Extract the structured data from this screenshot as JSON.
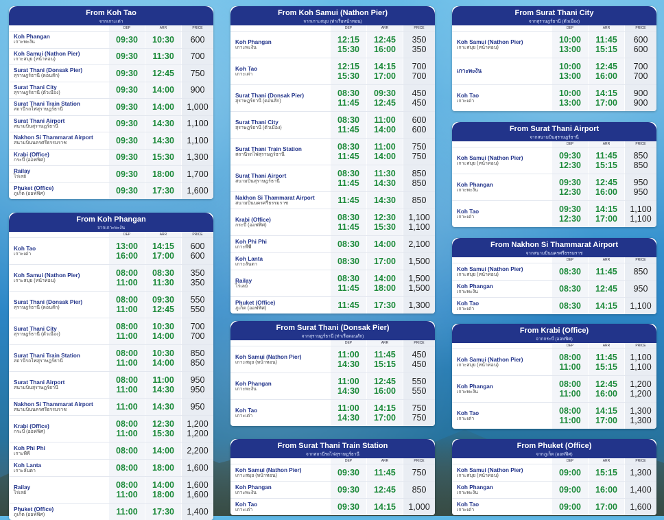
{
  "header_labels": {
    "dep": "DEP",
    "arr": "ARR",
    "price": "PRICE"
  },
  "panels": [
    {
      "title": "From Koh Tao",
      "sub": "จากเกาะเต่า",
      "rows": [
        {
          "en": "Koh Phangan",
          "th": "เกาะพะงัน",
          "dep": [
            "09:30"
          ],
          "arr": [
            "10:30"
          ],
          "price": [
            "600"
          ]
        },
        {
          "en": "Koh Samui (Nathon Pier)",
          "th": "เกาะสมุย (หน้าทอน)",
          "dep": [
            "09:30"
          ],
          "arr": [
            "11:30"
          ],
          "price": [
            "700"
          ]
        },
        {
          "en": "Surat Thani (Donsak Pier)",
          "th": "สุราษฎร์ธานี (ดอนสัก)",
          "dep": [
            "09:30"
          ],
          "arr": [
            "12:45"
          ],
          "price": [
            "750"
          ]
        },
        {
          "en": "Surat Thani City",
          "th": "สุราษฎร์ธานี (ตัวเมือง)",
          "dep": [
            "09:30"
          ],
          "arr": [
            "14:00"
          ],
          "price": [
            "900"
          ]
        },
        {
          "en": "Surat Thani Train Station",
          "th": "สถานีรถไฟสุราษฎร์ธานี",
          "dep": [
            "09:30"
          ],
          "arr": [
            "14:00"
          ],
          "price": [
            "1,000"
          ]
        },
        {
          "en": "Surat Thani Airport",
          "th": "สนามบินสุราษฎร์ธานี",
          "dep": [
            "09:30"
          ],
          "arr": [
            "14:30"
          ],
          "price": [
            "1,100"
          ]
        },
        {
          "en": "Nakhon Si Thammarat Airport",
          "th": "สนามบินนครศรีธรรมราช",
          "dep": [
            "09:30"
          ],
          "arr": [
            "14:30"
          ],
          "price": [
            "1,100"
          ]
        },
        {
          "en": "Krabi (Office)",
          "th": "กระบี่ (ออฟฟิศ)",
          "dep": [
            "09:30"
          ],
          "arr": [
            "15:30"
          ],
          "price": [
            "1,300"
          ]
        },
        {
          "en": "Railay",
          "th": "ไร่เลย์",
          "dep": [
            "09:30"
          ],
          "arr": [
            "18:00"
          ],
          "price": [
            "1,700"
          ]
        },
        {
          "en": "Phuket (Office)",
          "th": "ภูเก็ต (ออฟฟิศ)",
          "dep": [
            "09:30"
          ],
          "arr": [
            "17:30"
          ],
          "price": [
            "1,600"
          ]
        }
      ]
    },
    {
      "title": "From Koh Phangan",
      "sub": "จากเกาะพะงัน",
      "rows": [
        {
          "en": "Koh Tao",
          "th": "เกาะเต่า",
          "dep": [
            "13:00",
            "16:00"
          ],
          "arr": [
            "14:15",
            "17:00"
          ],
          "price": [
            "600",
            "600"
          ]
        },
        {
          "en": "Koh Samui (Nathon Pier)",
          "th": "เกาะสมุย (หน้าทอน)",
          "dep": [
            "08:00",
            "11:00"
          ],
          "arr": [
            "08:30",
            "11:30"
          ],
          "price": [
            "350",
            "350"
          ]
        },
        {
          "en": "Surat Thani (Donsak Pier)",
          "th": "สุราษฎร์ธานี (ดอนสัก)",
          "dep": [
            "08:00",
            "11:00"
          ],
          "arr": [
            "09:30",
            "12:45"
          ],
          "price": [
            "550",
            "550"
          ]
        },
        {
          "en": "Surat Thani City",
          "th": "สุราษฎร์ธานี (ตัวเมือง)",
          "dep": [
            "08:00",
            "11:00"
          ],
          "arr": [
            "10:30",
            "14:00"
          ],
          "price": [
            "700",
            "700"
          ]
        },
        {
          "en": "Surat Thani Train Station",
          "th": "สถานีรถไฟสุราษฎร์ธานี",
          "dep": [
            "08:00",
            "11:00"
          ],
          "arr": [
            "10:30",
            "14:00"
          ],
          "price": [
            "850",
            "850"
          ]
        },
        {
          "en": "Surat Thani Airport",
          "th": "สนามบินสุราษฎร์ธานี",
          "dep": [
            "08:00",
            "11:00"
          ],
          "arr": [
            "11:00",
            "14:30"
          ],
          "price": [
            "950",
            "950"
          ]
        },
        {
          "en": "Nakhon Si Thammarat Airport",
          "th": "สนามบินนครศรีธรรมราช",
          "dep": [
            "11:00"
          ],
          "arr": [
            "14:30"
          ],
          "price": [
            "950"
          ]
        },
        {
          "en": "Krabi (Office)",
          "th": "กระบี่ (ออฟฟิศ)",
          "dep": [
            "08:00",
            "11:00"
          ],
          "arr": [
            "12:30",
            "15:30"
          ],
          "price": [
            "1,200",
            "1,200"
          ]
        },
        {
          "en": "Koh Phi Phi",
          "th": "เกาะพีพี",
          "dep": [
            "08:00"
          ],
          "arr": [
            "14:00"
          ],
          "price": [
            "2,200"
          ]
        },
        {
          "en": "Koh Lanta",
          "th": "เกาะลันตา",
          "dep": [
            "08:00"
          ],
          "arr": [
            "18:00"
          ],
          "price": [
            "1,600"
          ]
        },
        {
          "en": "Railay",
          "th": "ไร่เลย์",
          "dep": [
            "08:00",
            "11:00"
          ],
          "arr": [
            "14:00",
            "18:00"
          ],
          "price": [
            "1,600",
            "1,600"
          ]
        },
        {
          "en": "Phuket (Office)",
          "th": "ภูเก็ต (ออฟฟิศ)",
          "dep": [
            "11:00"
          ],
          "arr": [
            "17:30"
          ],
          "price": [
            "1,400"
          ]
        }
      ]
    },
    {
      "title": "From Koh Samui (Nathon Pier)",
      "sub": "จากเกาะสมุย (ท่าเรือหน้าทอน)",
      "rows": [
        {
          "en": "Koh Phangan",
          "th": "เกาะพะงัน",
          "dep": [
            "12:15",
            "15:30"
          ],
          "arr": [
            "12:45",
            "16:00"
          ],
          "price": [
            "350",
            "350"
          ]
        },
        {
          "en": "Koh Tao",
          "th": "เกาะเต่า",
          "dep": [
            "12:15",
            "15:30"
          ],
          "arr": [
            "14:15",
            "17:00"
          ],
          "price": [
            "700",
            "700"
          ]
        },
        {
          "en": "Surat Thani (Donsak Pier)",
          "th": "สุราษฎร์ธานี (ดอนสัก)",
          "dep": [
            "08:30",
            "11:45"
          ],
          "arr": [
            "09:30",
            "12:45"
          ],
          "price": [
            "450",
            "450"
          ]
        },
        {
          "en": "Surat Thani City",
          "th": "สุราษฎร์ธานี (ตัวเมือง)",
          "dep": [
            "08:30",
            "11:45"
          ],
          "arr": [
            "11:00",
            "14:00"
          ],
          "price": [
            "600",
            "600"
          ]
        },
        {
          "en": "Surat Thani Train Station",
          "th": "สถานีรถไฟสุราษฎร์ธานี",
          "dep": [
            "08:30",
            "11:45"
          ],
          "arr": [
            "11:00",
            "14:00"
          ],
          "price": [
            "750",
            "750"
          ]
        },
        {
          "en": "Surat Thani Airport",
          "th": "สนามบินสุราษฎร์ธานี",
          "dep": [
            "08:30",
            "11:45"
          ],
          "arr": [
            "11:30",
            "14:30"
          ],
          "price": [
            "850",
            "850"
          ]
        },
        {
          "en": "Nakhon Si Thammarat Airport",
          "th": "สนามบินนครศรีธรรมราช",
          "dep": [
            "11:45"
          ],
          "arr": [
            "14:30"
          ],
          "price": [
            "850"
          ]
        },
        {
          "en": "Krabi (Office)",
          "th": "กระบี่ (ออฟฟิศ)",
          "dep": [
            "08:30",
            "11:45"
          ],
          "arr": [
            "12:30",
            "15:30"
          ],
          "price": [
            "1,100",
            "1,100"
          ]
        },
        {
          "en": "Koh Phi Phi",
          "th": "เกาะพีพี",
          "dep": [
            "08:30"
          ],
          "arr": [
            "14:00"
          ],
          "price": [
            "2,100"
          ]
        },
        {
          "en": "Koh Lanta",
          "th": "เกาะลันตา",
          "dep": [
            "08:30"
          ],
          "arr": [
            "17:00"
          ],
          "price": [
            "1,500"
          ]
        },
        {
          "en": "Railay",
          "th": "ไร่เลย์",
          "dep": [
            "08:30",
            "11:45"
          ],
          "arr": [
            "14:00",
            "18:00"
          ],
          "price": [
            "1,500",
            "1,500"
          ]
        },
        {
          "en": "Phuket (Office)",
          "th": "ภูเก็ต (ออฟฟิศ)",
          "dep": [
            "11:45"
          ],
          "arr": [
            "17:30"
          ],
          "price": [
            "1,300"
          ]
        }
      ]
    },
    {
      "title": "From Surat Thani (Donsak Pier)",
      "sub": "จากสุราษฎร์ธานี (ท่าเรือดอนสัก)",
      "rows": [
        {
          "en": "Koh Samui (Nathon Pier)",
          "th": "เกาะสมุย (หน้าทอน)",
          "dep": [
            "11:00",
            "14:30"
          ],
          "arr": [
            "11:45",
            "15:15"
          ],
          "price": [
            "450",
            "450"
          ]
        },
        {
          "en": "Koh Phangan",
          "th": "เกาะพะงัน",
          "dep": [
            "11:00",
            "14:30"
          ],
          "arr": [
            "12:45",
            "16:00"
          ],
          "price": [
            "550",
            "550"
          ]
        },
        {
          "en": "Koh Tao",
          "th": "เกาะเต่า",
          "dep": [
            "11:00",
            "14:30"
          ],
          "arr": [
            "14:15",
            "17:00"
          ],
          "price": [
            "750",
            "750"
          ]
        }
      ]
    },
    {
      "title": "From Surat Thani Train Station",
      "sub": "จากสถานีรถไฟสุราษฎร์ธานี",
      "rows": [
        {
          "en": "Koh Samui (Nathon Pier)",
          "th": "เกาะสมุย (หน้าทอน)",
          "dep": [
            "09:30"
          ],
          "arr": [
            "11:45"
          ],
          "price": [
            "750"
          ]
        },
        {
          "en": "Koh Phangan",
          "th": "เกาะพะงัน",
          "dep": [
            "09:30"
          ],
          "arr": [
            "12:45"
          ],
          "price": [
            "850"
          ]
        },
        {
          "en": "Koh Tao",
          "th": "เกาะเต่า",
          "dep": [
            "09:30"
          ],
          "arr": [
            "14:15"
          ],
          "price": [
            "1,000"
          ]
        }
      ]
    },
    {
      "title": "From Surat Thani City",
      "sub": "จากสุราษฎร์ธานี (ตัวเมือง)",
      "rows": [
        {
          "en": "Koh Samui (Nathon Pier)",
          "th": "เกาะสมุย (หน้าทอน)",
          "dep": [
            "10:00",
            "13:00"
          ],
          "arr": [
            "11:45",
            "15:15"
          ],
          "price": [
            "600",
            "600"
          ]
        },
        {
          "en": "เกาะพะงัน",
          "th": "",
          "dep": [
            "10:00",
            "13:00"
          ],
          "arr": [
            "12:45",
            "16:00"
          ],
          "price": [
            "700",
            "700"
          ]
        },
        {
          "en": "Koh Tao",
          "th": "เกาะเต่า",
          "dep": [
            "10:00",
            "13:00"
          ],
          "arr": [
            "14:15",
            "17:00"
          ],
          "price": [
            "900",
            "900"
          ]
        }
      ]
    },
    {
      "title": "From Surat Thani Airport",
      "sub": "จากสนามบินสุราษฎร์ธานี",
      "rows": [
        {
          "en": "Koh Samui (Nathon Pier)",
          "th": "เกาะสมุย (หน้าทอน)",
          "dep": [
            "09:30",
            "12:30"
          ],
          "arr": [
            "11:45",
            "15:15"
          ],
          "price": [
            "850",
            "850"
          ]
        },
        {
          "en": "Koh Phangan",
          "th": "เกาะพะงัน",
          "dep": [
            "09:30",
            "12:30"
          ],
          "arr": [
            "12:45",
            "16:00"
          ],
          "price": [
            "950",
            "950"
          ]
        },
        {
          "en": "Koh Tao",
          "th": "เกาะเต่า",
          "dep": [
            "09:30",
            "12:30"
          ],
          "arr": [
            "14:15",
            "17:00"
          ],
          "price": [
            "1,100",
            "1,100"
          ]
        }
      ]
    },
    {
      "title": "From Nakhon Si Thammarat Airport",
      "sub": "จากสนามบินนครศรีธรรมราช",
      "rows": [
        {
          "en": "Koh Samui (Nathon Pier)",
          "th": "เกาะสมุย (หน้าทอน)",
          "dep": [
            "08:30"
          ],
          "arr": [
            "11:45"
          ],
          "price": [
            "850"
          ]
        },
        {
          "en": "Koh Phangan",
          "th": "เกาะพะงัน",
          "dep": [
            "08:30"
          ],
          "arr": [
            "12:45"
          ],
          "price": [
            "950"
          ]
        },
        {
          "en": "Koh Tao",
          "th": "เกาะเต่า",
          "dep": [
            "08:30"
          ],
          "arr": [
            "14:15"
          ],
          "price": [
            "1,100"
          ]
        }
      ]
    },
    {
      "title": "From Krabi (Office)",
      "sub": "จากกระบี่ (ออฟฟิศ)",
      "rows": [
        {
          "en": "Koh Samui (Nathon Pier)",
          "th": "เกาะสมุย (หน้าทอน)",
          "dep": [
            "08:00",
            "11:00"
          ],
          "arr": [
            "11:45",
            "15:15"
          ],
          "price": [
            "1,100",
            "1,100"
          ]
        },
        {
          "en": "Koh Phangan",
          "th": "เกาะพะงัน",
          "dep": [
            "08:00",
            "11:00"
          ],
          "arr": [
            "12:45",
            "16:00"
          ],
          "price": [
            "1,200",
            "1,200"
          ]
        },
        {
          "en": "Koh Tao",
          "th": "เกาะเต่า",
          "dep": [
            "08:00",
            "11:00"
          ],
          "arr": [
            "14:15",
            "17:00"
          ],
          "price": [
            "1,300",
            "1,300"
          ]
        }
      ]
    },
    {
      "title": "From Phuket (Office)",
      "sub": "จากภูเก็ต (ออฟฟิศ)",
      "rows": [
        {
          "en": "Koh Samui (Nathon Pier)",
          "th": "เกาะสมุย (หน้าทอน)",
          "dep": [
            "09:00"
          ],
          "arr": [
            "15:15"
          ],
          "price": [
            "1,300"
          ]
        },
        {
          "en": "Koh Phangan",
          "th": "เกาะพะงัน",
          "dep": [
            "09:00"
          ],
          "arr": [
            "16:00"
          ],
          "price": [
            "1,400"
          ]
        },
        {
          "en": "Koh Tao",
          "th": "เกาะเต่า",
          "dep": [
            "09:00"
          ],
          "arr": [
            "17:00"
          ],
          "price": [
            "1,600"
          ]
        }
      ]
    }
  ]
}
